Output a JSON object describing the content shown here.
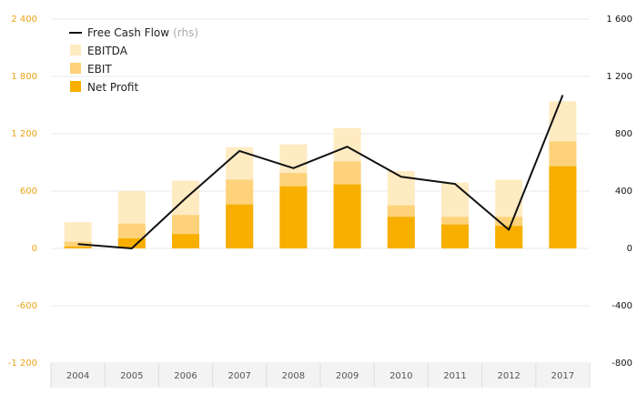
{
  "chart_data": {
    "type": "bar",
    "categories": [
      "2004",
      "2005",
      "2006",
      "2007",
      "2008",
      "2009",
      "2010",
      "2011",
      "2012",
      "2017"
    ],
    "series": [
      {
        "name": "EBITDA",
        "values": [
          275,
          600,
          710,
          1060,
          1090,
          1260,
          810,
          690,
          720,
          1540
        ]
      },
      {
        "name": "EBIT",
        "values": [
          70,
          260,
          350,
          720,
          790,
          910,
          450,
          330,
          330,
          1120
        ]
      },
      {
        "name": "Net Profit",
        "values": [
          20,
          105,
          150,
          460,
          650,
          670,
          330,
          250,
          235,
          860
        ]
      },
      {
        "name": "Free Cash Flow",
        "axis": "right",
        "values": [
          30,
          0,
          350,
          680,
          560,
          710,
          500,
          450,
          130,
          1070
        ]
      }
    ],
    "legend": {
      "entries": [
        "Free Cash Flow",
        "EBITDA",
        "EBIT",
        "Net Profit"
      ],
      "line_suffix": "(rhs)",
      "placement": "top-left"
    },
    "y_left": {
      "ticks": [
        "2 400",
        "1 800",
        "1 200",
        "600",
        "0",
        "-600",
        "-1 200"
      ],
      "ylim": [
        -1200,
        2400
      ]
    },
    "y_right": {
      "ticks": [
        "1 600",
        "1 200",
        "800",
        "400",
        "0",
        "-400",
        "-800"
      ],
      "ylim": [
        -800,
        1600
      ]
    },
    "grid": true,
    "title": "",
    "xlabel": "",
    "ylabel": ""
  },
  "colors": {
    "ebitda": "#FFEBC2",
    "ebit": "#FDD27A",
    "net_profit": "#F8AF00",
    "fcf_line": "#111111",
    "left_axis_text": "#E8A317",
    "grid": "#e8e8e8",
    "axis_band": "#f3f3f3"
  }
}
